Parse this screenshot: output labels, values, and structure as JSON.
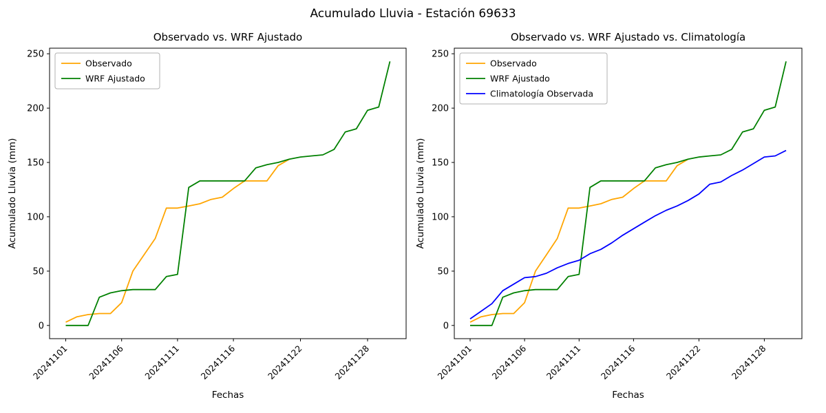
{
  "figure": {
    "title": "Acumulado Lluvia - Estación 69633"
  },
  "chart_data": [
    {
      "type": "line",
      "title": "Observado vs. WRF Ajustado",
      "xlabel": "Fechas",
      "ylabel": "Acumulado Lluvia (mm)",
      "x": [
        "20241101",
        "20241102",
        "20241103",
        "20241104",
        "20241105",
        "20241106",
        "20241107",
        "20241108",
        "20241109",
        "20241110",
        "20241111",
        "20241112",
        "20241113",
        "20241114",
        "20241115",
        "20241116",
        "20241117",
        "20241118",
        "20241119",
        "20241120",
        "20241121",
        "20241122",
        "20241123",
        "20241124",
        "20241125",
        "20241126",
        "20241127",
        "20241128",
        "20241129",
        "20241130"
      ],
      "xtick_indices": [
        0,
        5,
        10,
        15,
        21,
        27
      ],
      "yticks": [
        0,
        50,
        100,
        150,
        200,
        250
      ],
      "ylim": [
        -12.15,
        255.15
      ],
      "xlim_pad": 1.45,
      "grid": false,
      "legend_position": "upper-left",
      "series": [
        {
          "name": "Observado",
          "color": "#ffa500",
          "values": [
            3,
            8,
            10,
            11,
            11,
            21,
            50,
            65,
            80,
            108,
            108,
            110,
            112,
            116,
            118,
            126,
            133,
            133,
            133,
            147,
            153,
            null,
            null,
            null,
            null,
            null,
            null,
            null,
            null,
            null
          ]
        },
        {
          "name": "WRF Ajustado",
          "color": "#008000",
          "values": [
            0,
            0,
            0,
            26,
            30,
            32,
            33,
            33,
            33,
            45,
            47,
            127,
            133,
            133,
            133,
            133,
            133,
            145,
            148,
            150,
            153,
            155,
            156,
            157,
            162,
            178,
            181,
            198,
            201,
            243
          ]
        }
      ]
    },
    {
      "type": "line",
      "title": "Observado vs. WRF Ajustado vs. Climatología",
      "xlabel": "Fechas",
      "ylabel": "Acumulado Lluvia (mm)",
      "x": [
        "20241101",
        "20241102",
        "20241103",
        "20241104",
        "20241105",
        "20241106",
        "20241107",
        "20241108",
        "20241109",
        "20241110",
        "20241111",
        "20241112",
        "20241113",
        "20241114",
        "20241115",
        "20241116",
        "20241117",
        "20241118",
        "20241119",
        "20241120",
        "20241121",
        "20241122",
        "20241123",
        "20241124",
        "20241125",
        "20241126",
        "20241127",
        "20241128",
        "20241129",
        "20241130"
      ],
      "xtick_indices": [
        0,
        5,
        10,
        15,
        21,
        27
      ],
      "yticks": [
        0,
        50,
        100,
        150,
        200,
        250
      ],
      "ylim": [
        -12.15,
        255.15
      ],
      "xlim_pad": 1.45,
      "grid": false,
      "legend_position": "upper-left",
      "series": [
        {
          "name": "Observado",
          "color": "#ffa500",
          "values": [
            3,
            8,
            10,
            11,
            11,
            21,
            50,
            65,
            80,
            108,
            108,
            110,
            112,
            116,
            118,
            126,
            133,
            133,
            133,
            147,
            153,
            null,
            null,
            null,
            null,
            null,
            null,
            null,
            null,
            null
          ]
        },
        {
          "name": "WRF Ajustado",
          "color": "#008000",
          "values": [
            0,
            0,
            0,
            26,
            30,
            32,
            33,
            33,
            33,
            45,
            47,
            127,
            133,
            133,
            133,
            133,
            133,
            145,
            148,
            150,
            153,
            155,
            156,
            157,
            162,
            178,
            181,
            198,
            201,
            243
          ]
        },
        {
          "name": "Climatología Observada",
          "color": "#0000ff",
          "values": [
            6,
            13,
            20,
            32,
            38,
            44,
            45,
            48,
            53,
            57,
            60,
            66,
            70,
            76,
            83,
            89,
            95,
            101,
            106,
            110,
            115,
            121,
            130,
            132,
            138,
            143,
            149,
            155,
            156,
            161
          ]
        }
      ]
    }
  ]
}
